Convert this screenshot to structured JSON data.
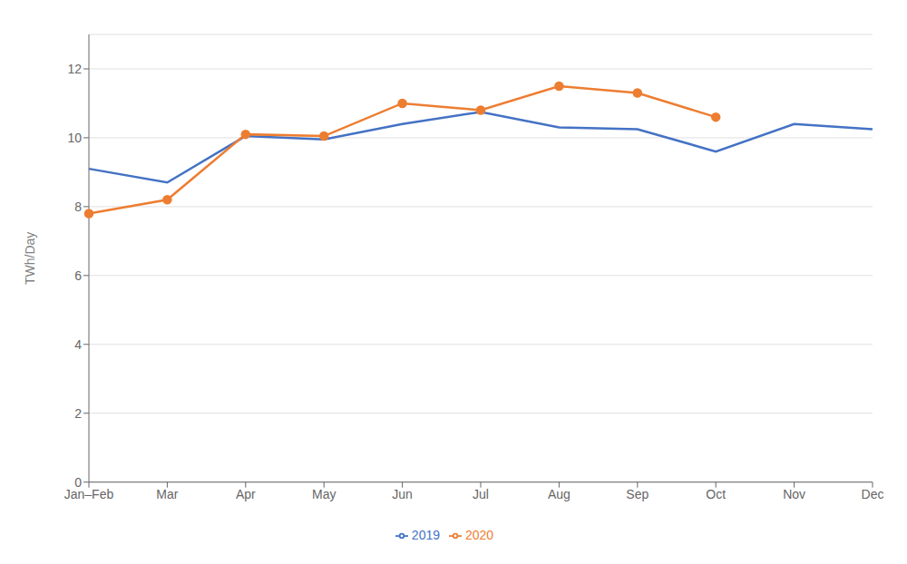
{
  "chart_data": {
    "type": "line",
    "categories": [
      "Jan–Feb",
      "Mar",
      "Apr",
      "May",
      "Jun",
      "Jul",
      "Aug",
      "Sep",
      "Oct",
      "Nov",
      "Dec"
    ],
    "series": [
      {
        "name": "2019",
        "color": "#4472C4",
        "marker": "none",
        "values": [
          9.1,
          8.7,
          10.05,
          9.95,
          10.4,
          10.75,
          10.3,
          10.25,
          9.6,
          10.4,
          10.25
        ]
      },
      {
        "name": "2020",
        "color": "#ED7D31",
        "marker": "circle",
        "values": [
          7.8,
          8.2,
          10.1,
          10.05,
          11.0,
          10.8,
          11.5,
          11.3,
          10.6,
          null,
          null
        ]
      }
    ],
    "ylabel": "TWh/Day",
    "ylim": [
      0,
      13
    ],
    "yticks": [
      0,
      2,
      4,
      6,
      8,
      10,
      12
    ],
    "grid": true,
    "legend": "bottom"
  }
}
